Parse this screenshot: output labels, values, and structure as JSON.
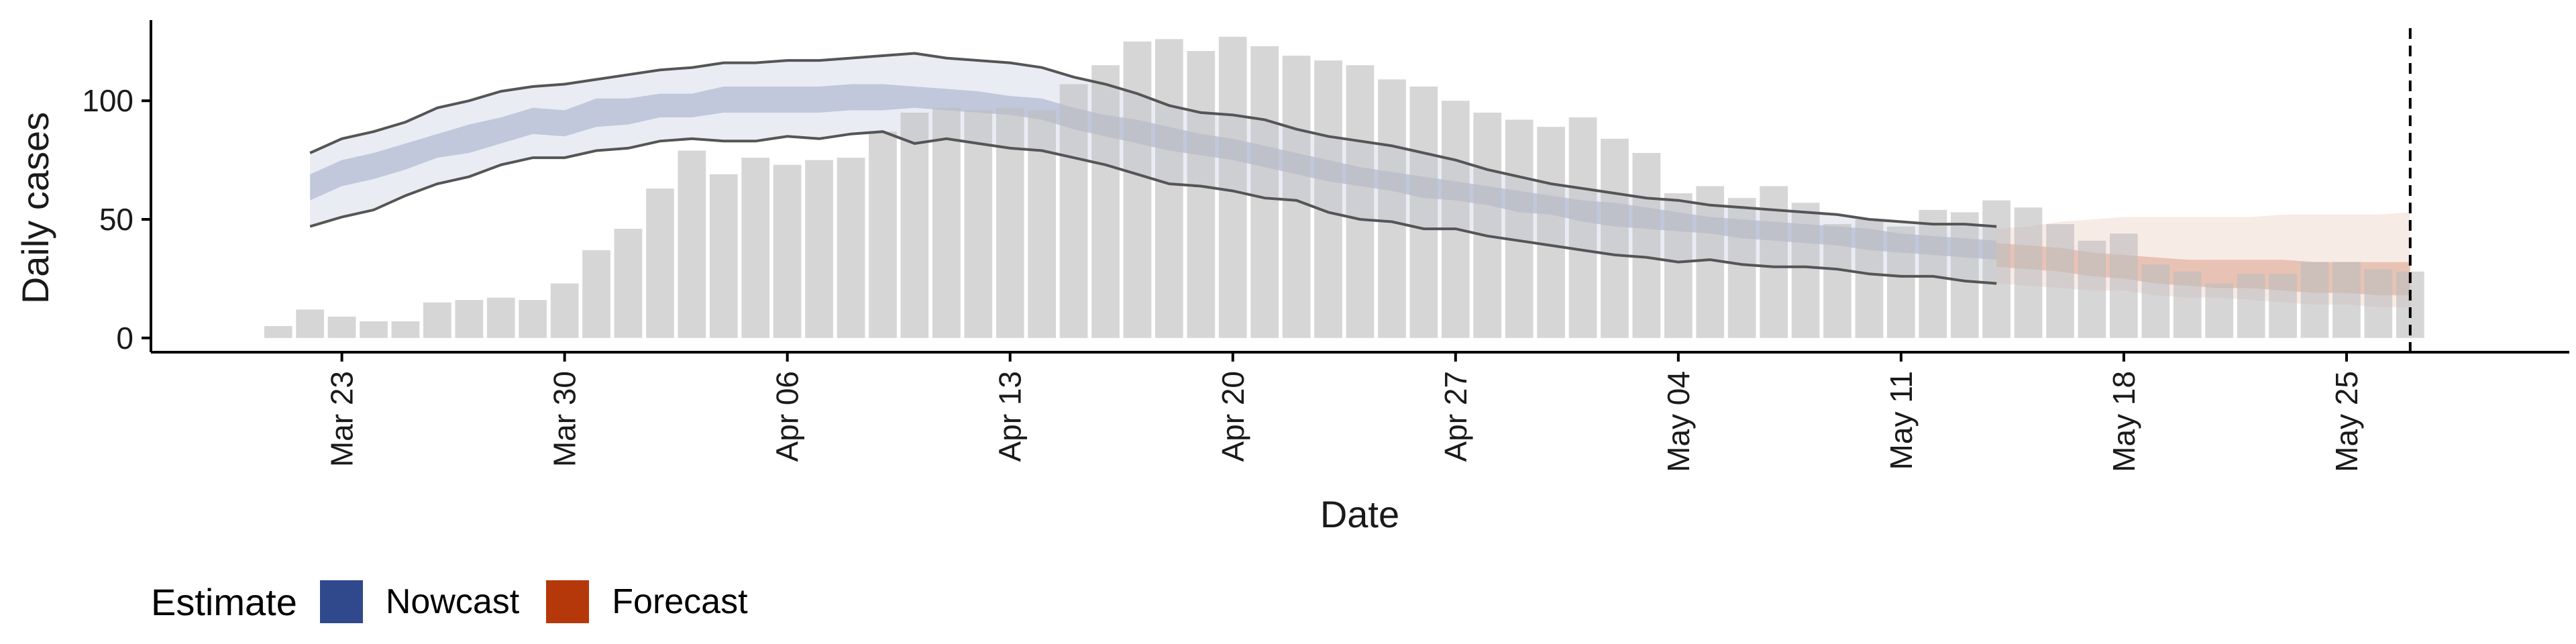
{
  "chart_data": {
    "type": "bar",
    "xlabel": "Date",
    "ylabel": "Daily cases",
    "ylim": [
      -6,
      134
    ],
    "y_ticks": [
      0,
      50,
      100
    ],
    "x_ticks": [
      {
        "date": "2020-03-23",
        "label": "Mar 23"
      },
      {
        "date": "2020-03-30",
        "label": "Mar 30"
      },
      {
        "date": "2020-04-06",
        "label": "Apr 06"
      },
      {
        "date": "2020-04-13",
        "label": "Apr 13"
      },
      {
        "date": "2020-04-20",
        "label": "Apr 20"
      },
      {
        "date": "2020-04-27",
        "label": "Apr 27"
      },
      {
        "date": "2020-05-04",
        "label": "May 04"
      },
      {
        "date": "2020-05-11",
        "label": "May 11"
      },
      {
        "date": "2020-05-18",
        "label": "May 18"
      },
      {
        "date": "2020-05-25",
        "label": "May 25"
      }
    ],
    "xlim": [
      "2020-03-17",
      "2020-06-01"
    ],
    "grid": false,
    "legend_position": "bottom-left",
    "vline_date": "2020-05-27",
    "bar_color": "#bdbdbd",
    "bars": {
      "dates": [
        "2020-03-21",
        "2020-03-22",
        "2020-03-23",
        "2020-03-24",
        "2020-03-25",
        "2020-03-26",
        "2020-03-27",
        "2020-03-28",
        "2020-03-29",
        "2020-03-30",
        "2020-03-31",
        "2020-04-01",
        "2020-04-02",
        "2020-04-03",
        "2020-04-04",
        "2020-04-05",
        "2020-04-06",
        "2020-04-07",
        "2020-04-08",
        "2020-04-09",
        "2020-04-10",
        "2020-04-11",
        "2020-04-12",
        "2020-04-13",
        "2020-04-14",
        "2020-04-15",
        "2020-04-16",
        "2020-04-17",
        "2020-04-18",
        "2020-04-19",
        "2020-04-20",
        "2020-04-21",
        "2020-04-22",
        "2020-04-23",
        "2020-04-24",
        "2020-04-25",
        "2020-04-26",
        "2020-04-27",
        "2020-04-28",
        "2020-04-29",
        "2020-04-30",
        "2020-05-01",
        "2020-05-02",
        "2020-05-03",
        "2020-05-04",
        "2020-05-05",
        "2020-05-06",
        "2020-05-07",
        "2020-05-08",
        "2020-05-09",
        "2020-05-10",
        "2020-05-11",
        "2020-05-12",
        "2020-05-13",
        "2020-05-14",
        "2020-05-15",
        "2020-05-16",
        "2020-05-17",
        "2020-05-18",
        "2020-05-19",
        "2020-05-20",
        "2020-05-21",
        "2020-05-22",
        "2020-05-23",
        "2020-05-24",
        "2020-05-25",
        "2020-05-26",
        "2020-05-27"
      ],
      "values": [
        5,
        12,
        9,
        7,
        7,
        15,
        16,
        17,
        16,
        23,
        37,
        46,
        63,
        79,
        69,
        76,
        73,
        75,
        76,
        87,
        95,
        97,
        96,
        97,
        96,
        107,
        115,
        125,
        126,
        121,
        127,
        123,
        119,
        117,
        115,
        109,
        106,
        100,
        95,
        92,
        89,
        93,
        84,
        78,
        61,
        64,
        59,
        64,
        57,
        48,
        50,
        47,
        54,
        53,
        58,
        55,
        48,
        41,
        44,
        31,
        28,
        23,
        27,
        27,
        32,
        32,
        29,
        28
      ]
    },
    "series": [
      {
        "name": "Nowcast",
        "color": "#30488c",
        "start": "2020-03-22",
        "band90_low": [
          47,
          51,
          54,
          60,
          65,
          68,
          73,
          76,
          76,
          79,
          80,
          83,
          84,
          83,
          83,
          85,
          84,
          86,
          87,
          82,
          84,
          82,
          80,
          79,
          76,
          73,
          69,
          65,
          64,
          62,
          59,
          58,
          53,
          50,
          49,
          46,
          46,
          43,
          41,
          39,
          37,
          35,
          34,
          32,
          33,
          31,
          30,
          30,
          29,
          27,
          26,
          26,
          24,
          23
        ],
        "band90_high": [
          78,
          84,
          87,
          91,
          97,
          100,
          104,
          106,
          107,
          109,
          111,
          113,
          114,
          116,
          116,
          117,
          117,
          118,
          119,
          120,
          118,
          117,
          116,
          114,
          110,
          107,
          103,
          98,
          95,
          94,
          92,
          88,
          85,
          83,
          81,
          78,
          75,
          71,
          68,
          65,
          63,
          61,
          59,
          58,
          56,
          55,
          54,
          53,
          52,
          50,
          49,
          48,
          48,
          47
        ],
        "band50_low": [
          58,
          64,
          67,
          71,
          76,
          78,
          82,
          86,
          85,
          89,
          90,
          93,
          93,
          95,
          95,
          95,
          95,
          96,
          96,
          97,
          96,
          95,
          94,
          92,
          88,
          85,
          82,
          79,
          77,
          75,
          72,
          69,
          66,
          64,
          62,
          59,
          58,
          56,
          53,
          52,
          49,
          47,
          46,
          45,
          44,
          42,
          41,
          40,
          39,
          37,
          36,
          35,
          34,
          33
        ],
        "band50_high": [
          69,
          75,
          78,
          82,
          86,
          90,
          93,
          97,
          96,
          101,
          101,
          103,
          103,
          106,
          106,
          106,
          106,
          107,
          107,
          106,
          105,
          104,
          102,
          101,
          97,
          94,
          92,
          89,
          86,
          84,
          81,
          78,
          75,
          72,
          70,
          68,
          66,
          64,
          62,
          60,
          58,
          57,
          55,
          53,
          51,
          50,
          49,
          48,
          47,
          46,
          44,
          43,
          42,
          41
        ]
      },
      {
        "name": "Forecast",
        "color": "#b5380a",
        "start": "2020-05-14",
        "band90_low": [
          23,
          22,
          21,
          20,
          20,
          18,
          17,
          17,
          16,
          15,
          14,
          14,
          13,
          13
        ],
        "band90_high": [
          46,
          47,
          49,
          50,
          51,
          51,
          51,
          51,
          51,
          52,
          52,
          52,
          52,
          53
        ],
        "band50_low": [
          30,
          29,
          28,
          26,
          25,
          23,
          22,
          21,
          21,
          20,
          19,
          19,
          18,
          18
        ],
        "band50_high": [
          40,
          39,
          38,
          36,
          35,
          34,
          33,
          33,
          33,
          33,
          32,
          32,
          32,
          32
        ]
      }
    ]
  }
}
